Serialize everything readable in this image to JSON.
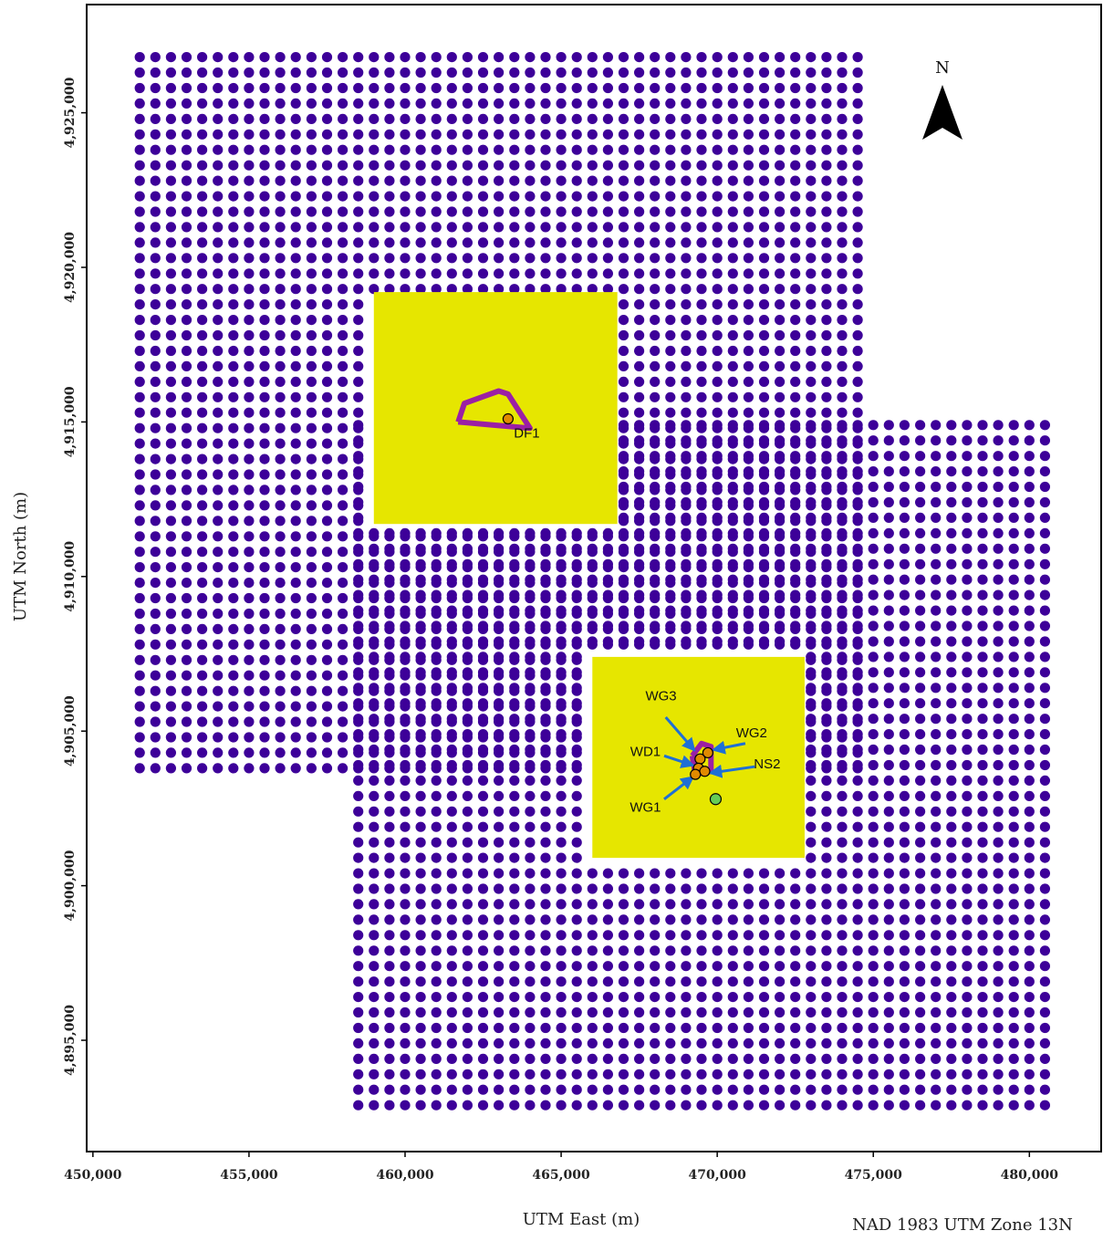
{
  "chart_data": {
    "type": "scatter",
    "title": "",
    "xlabel": "UTM East (m)",
    "ylabel": "UTM North (m)",
    "datum_note": "NAD 1983 UTM Zone 13N",
    "north_arrow_label": "N",
    "xlim": [
      449800,
      482300
    ],
    "ylim": [
      4891400,
      4928500
    ],
    "x_ticks": [
      450000,
      455000,
      460000,
      465000,
      470000,
      475000,
      480000
    ],
    "x_tick_labels": [
      "450,000",
      "455,000",
      "460,000",
      "465,000",
      "470,000",
      "475,000",
      "480,000"
    ],
    "y_ticks": [
      4895000,
      4900000,
      4905000,
      4910000,
      4915000,
      4920000,
      4925000
    ],
    "y_tick_labels": [
      "4,895,000",
      "4,900,000",
      "4,905,000",
      "4,910,000",
      "4,915,000",
      "4,920,000",
      "4,925,000"
    ],
    "grid": false,
    "receptor_grids": [
      {
        "x_min": 451500,
        "x_max": 474700,
        "y_min": 4903800,
        "y_max": 4927000,
        "spacing": 500
      },
      {
        "x_min": 458500,
        "x_max": 480600,
        "y_min": 4892900,
        "y_max": 4915200,
        "spacing": 500
      }
    ],
    "excluded_areas": [
      {
        "x_min": 459000,
        "x_max": 466800,
        "y_min": 4911700,
        "y_max": 4919200
      },
      {
        "x_min": 466000,
        "x_max": 472800,
        "y_min": 4900900,
        "y_max": 4907400
      }
    ],
    "facility_outlines": [
      {
        "points": [
          [
            461700,
            4915000
          ],
          [
            461900,
            4915600
          ],
          [
            463000,
            4916000
          ],
          [
            463300,
            4915900
          ],
          [
            464000,
            4914800
          ],
          [
            462800,
            4914900
          ],
          [
            461700,
            4915000
          ]
        ]
      },
      {
        "points": [
          [
            469200,
            4904200
          ],
          [
            469500,
            4904600
          ],
          [
            469800,
            4904500
          ],
          [
            469800,
            4903700
          ],
          [
            469300,
            4903600
          ],
          [
            469200,
            4904200
          ]
        ]
      }
    ],
    "sources": [
      {
        "name": "DF1",
        "x": 463300,
        "y": 4915100
      },
      {
        "name": "WG2",
        "x": 469700,
        "y": 4904300
      },
      {
        "name": "WG3",
        "x": 469450,
        "y": 4904100
      },
      {
        "name": "WD1",
        "x": 469400,
        "y": 4903800
      },
      {
        "name": "NS2",
        "x": 469600,
        "y": 4903700
      },
      {
        "name": "WG1",
        "x": 469300,
        "y": 4903600
      }
    ],
    "met_station": {
      "x": 469950,
      "y": 4902800
    },
    "site_labels": [
      {
        "text": "DF1",
        "x": 463900,
        "y": 4914500
      },
      {
        "text": "WG3",
        "x": 468200,
        "y": 4906000
      },
      {
        "text": "WG2",
        "x": 471100,
        "y": 4904800
      },
      {
        "text": "WD1",
        "x": 467700,
        "y": 4904200
      },
      {
        "text": "NS2",
        "x": 471600,
        "y": 4903800
      },
      {
        "text": "WG1",
        "x": 467700,
        "y": 4902400
      }
    ],
    "arrows": [
      {
        "from": [
          468350,
          4905450
        ],
        "to": [
          469250,
          4904400
        ]
      },
      {
        "from": [
          470900,
          4904600
        ],
        "to": [
          469900,
          4904400
        ]
      },
      {
        "from": [
          468300,
          4904200
        ],
        "to": [
          469200,
          4903900
        ]
      },
      {
        "from": [
          471200,
          4903850
        ],
        "to": [
          469800,
          4903650
        ]
      },
      {
        "from": [
          468300,
          4902800
        ],
        "to": [
          469200,
          4903500
        ]
      }
    ],
    "colors": {
      "receptor": "#3d0099",
      "excluded_area": "#e6e600",
      "outline": "#9b1fa5",
      "source_fill": "#e08a00",
      "met_station": "#66cc55",
      "arrow": "#1e6fd6"
    }
  }
}
